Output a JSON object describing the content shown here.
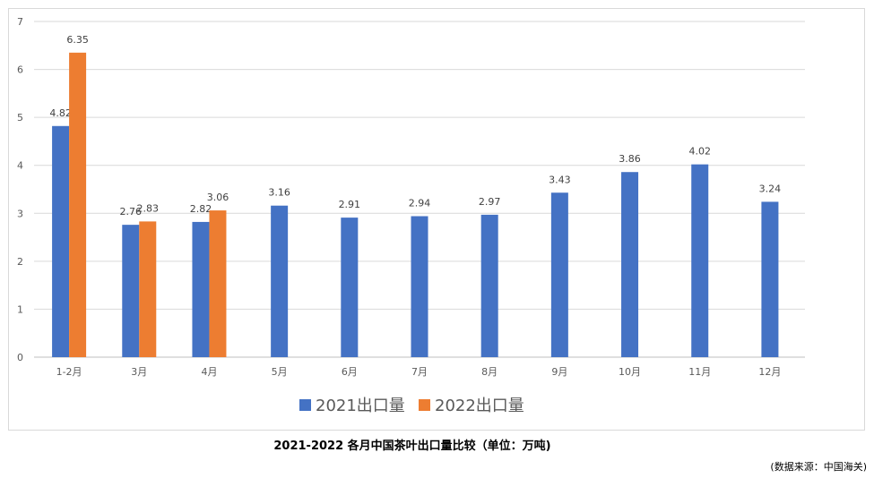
{
  "caption": "2021-2022 各月中国茶叶出口量比较（单位：万吨)",
  "source": "(数据来源：中国海关)",
  "chart_data": {
    "type": "bar",
    "categories": [
      "1-2月",
      "3月",
      "4月",
      "5月",
      "6月",
      "7月",
      "8月",
      "9月",
      "10月",
      "11月",
      "12月"
    ],
    "series": [
      {
        "name": "2021出口量",
        "color": "#4472C4",
        "values": [
          4.82,
          2.76,
          2.82,
          3.16,
          2.91,
          2.94,
          2.97,
          3.43,
          3.86,
          4.02,
          3.24
        ]
      },
      {
        "name": "2022出口量",
        "color": "#ED7D31",
        "values": [
          6.35,
          2.83,
          3.06,
          null,
          null,
          null,
          null,
          null,
          null,
          null,
          null
        ]
      }
    ],
    "ylim": [
      0,
      7
    ],
    "yticks": [
      0,
      1,
      2,
      3,
      4,
      5,
      6,
      7
    ],
    "grid": true,
    "legend_position": "bottom"
  }
}
